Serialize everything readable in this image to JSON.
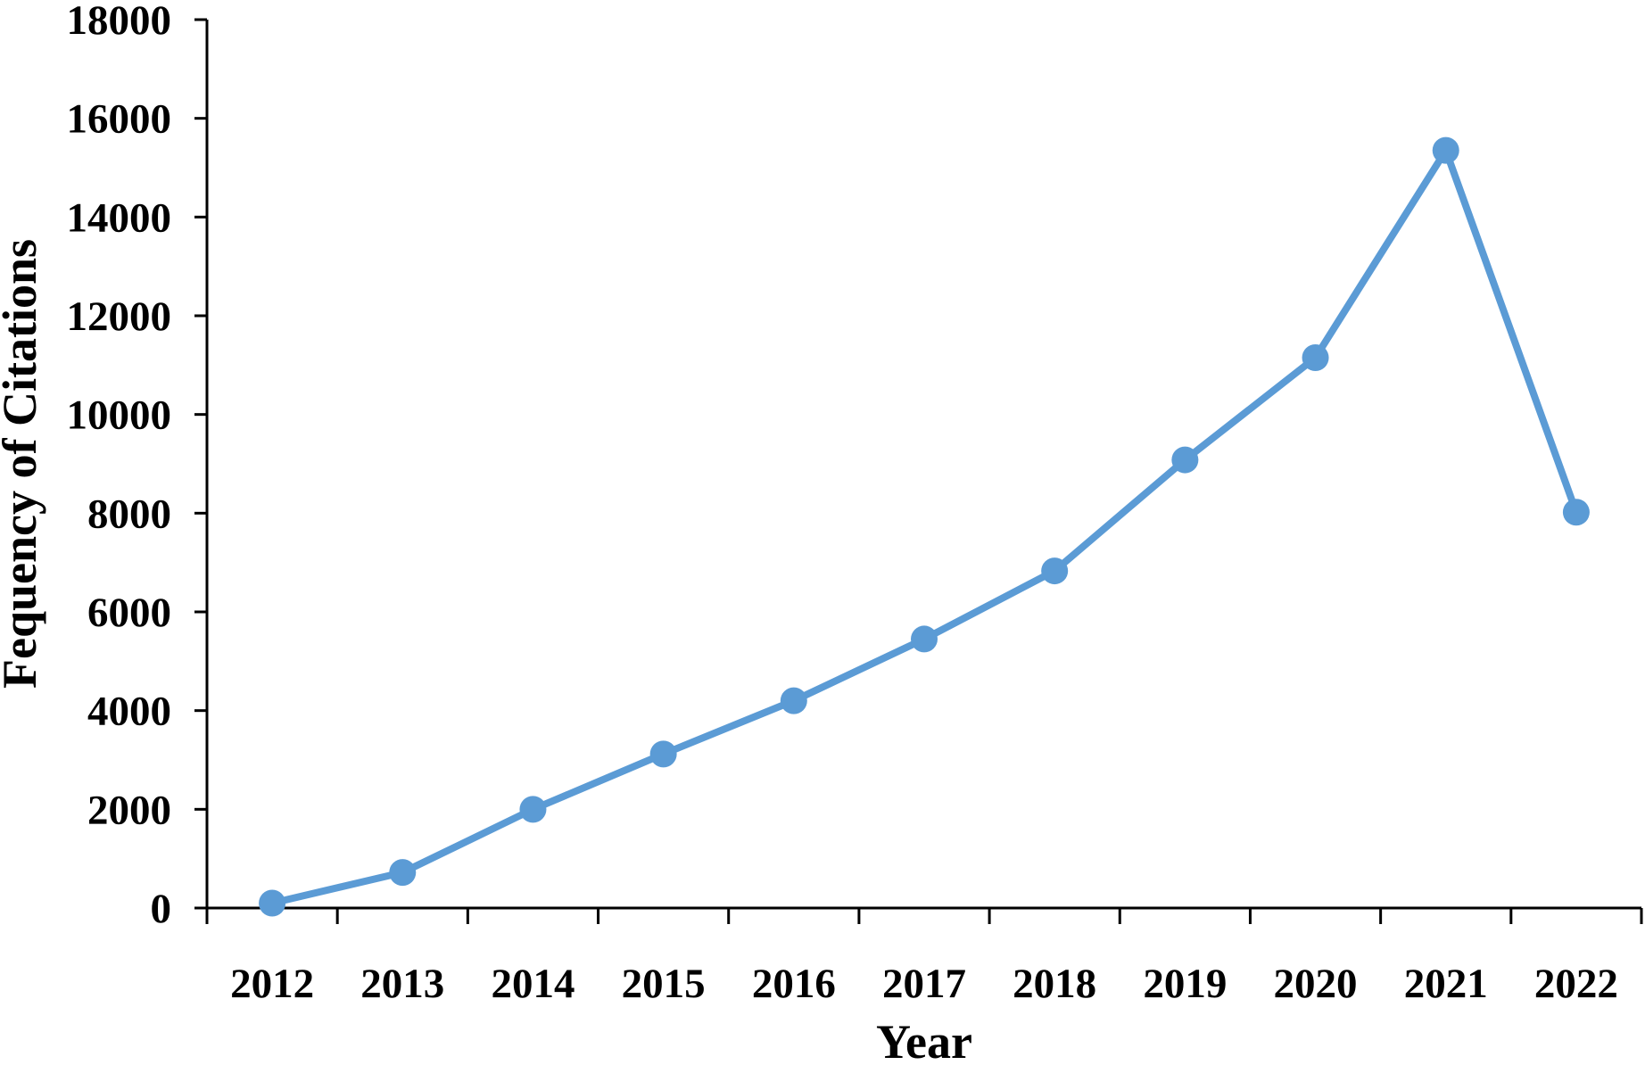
{
  "chart_data": {
    "type": "line",
    "title": "",
    "xlabel": "Year",
    "ylabel": "Fequency of Citations",
    "categories": [
      "2012",
      "2013",
      "2014",
      "2015",
      "2016",
      "2017",
      "2018",
      "2019",
      "2020",
      "2021",
      "2022"
    ],
    "series": [
      {
        "values": [
          100,
          720,
          2000,
          3120,
          4200,
          5450,
          6830,
          9080,
          11150,
          15350,
          8020
        ],
        "color": "#5B9BD5"
      }
    ],
    "ylim": [
      0,
      18000
    ],
    "yticks": [
      0,
      2000,
      4000,
      6000,
      8000,
      10000,
      12000,
      14000,
      16000,
      18000
    ],
    "grid": false,
    "legend": "none",
    "markers": "circle"
  }
}
